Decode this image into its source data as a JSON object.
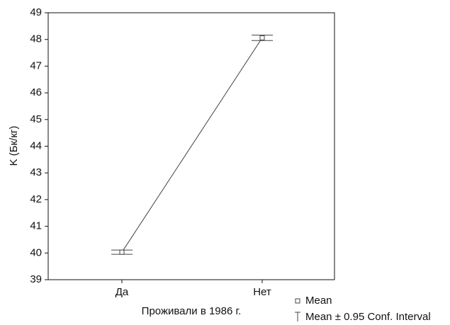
{
  "chart_data": {
    "type": "line",
    "x_label": "Проживали в 1986 г.",
    "y_label": "K (Бк/кг)",
    "categories": [
      "Да",
      "Нет"
    ],
    "series": [
      {
        "name": "Mean",
        "color": "#444444",
        "values": [
          40.03,
          48.06
        ],
        "errors": [
          0.08,
          0.1
        ]
      }
    ],
    "error_legend": "Mean ± 0.95 Conf. Interval",
    "ylim": [
      39,
      49
    ],
    "yticks": [
      39,
      40,
      41,
      42,
      43,
      44,
      45,
      46,
      47,
      48,
      49
    ],
    "grid": false
  }
}
